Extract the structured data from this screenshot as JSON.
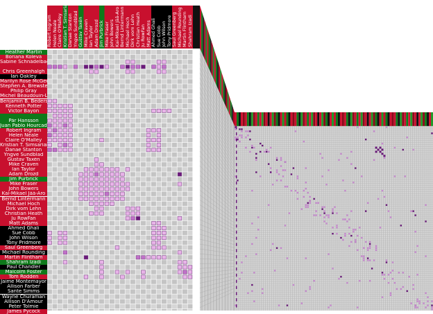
{
  "colors": {
    "red": "#c8102e",
    "green": "#0e7a1a",
    "black": "#000000",
    "cell_light": "#dcdcdc",
    "cell_dark": "#c2c2c2",
    "link_light": "#e8b3e8",
    "link_mid": "#c070c8",
    "link_dark": "#6a1a7a"
  },
  "matrix": {
    "rows": [
      {
        "name": "Heather Martin",
        "color": "green"
      },
      {
        "name": "Boriana Koleva",
        "color": "red"
      },
      {
        "name": "Sabine Schnädelbach",
        "color": "red"
      },
      {
        "name": "",
        "color": "red"
      },
      {
        "name": "Chris Greenhalgh",
        "color": "red"
      },
      {
        "name": "Ian Oakley",
        "color": "black"
      },
      {
        "name": "Marilyn Rose McGee",
        "color": "red"
      },
      {
        "name": "Stephen A. Brewster",
        "color": "red"
      },
      {
        "name": "Philip Gray",
        "color": "red"
      },
      {
        "name": "Michel Beaudouin-Lafon",
        "color": "red"
      },
      {
        "name": "Benjamin B. Bederson",
        "color": "red"
      },
      {
        "name": "Kenneth Potter",
        "color": "red"
      },
      {
        "name": "Victor Bayon",
        "color": "red"
      },
      {
        "name": "",
        "color": "green"
      },
      {
        "name": "Pär Hansson",
        "color": "green"
      },
      {
        "name": "Juan Pablo Hourcade",
        "color": "green"
      },
      {
        "name": "Robert Ingram",
        "color": "red"
      },
      {
        "name": "Helen Neale",
        "color": "red"
      },
      {
        "name": "Claire O'Malley",
        "color": "red"
      },
      {
        "name": "Kristian T. Simsarian",
        "color": "red"
      },
      {
        "name": "Danae Stanton",
        "color": "red"
      },
      {
        "name": "Yngve Sundblad",
        "color": "red"
      },
      {
        "name": "Gustav Taxén",
        "color": "red"
      },
      {
        "name": "Mike Craven",
        "color": "red"
      },
      {
        "name": "Ian Taylor",
        "color": "red"
      },
      {
        "name": "Adam Drozd",
        "color": "red"
      },
      {
        "name": "Jim Purbrick",
        "color": "green"
      },
      {
        "name": "Mike Fraser",
        "color": "red"
      },
      {
        "name": "John Bowers",
        "color": "red"
      },
      {
        "name": "Kai-Mikael Jää-Aro",
        "color": "red"
      },
      {
        "name": "Bernd Lintermann",
        "color": "red"
      },
      {
        "name": "Michael Hoch",
        "color": "red"
      },
      {
        "name": "Dirk vom Lehn",
        "color": "red"
      },
      {
        "name": "Christian Heath",
        "color": "red"
      },
      {
        "name": "Ju RowFan",
        "color": "red"
      },
      {
        "name": "Matt Adams",
        "color": "red"
      },
      {
        "name": "Ahmed Ghali",
        "color": "black"
      },
      {
        "name": "Sue Cobb",
        "color": "black"
      },
      {
        "name": "John Wilson",
        "color": "black"
      },
      {
        "name": "Tony Pridmore",
        "color": "black"
      },
      {
        "name": "Saul Greenberg",
        "color": "red"
      },
      {
        "name": "Michael Rounding",
        "color": "black"
      },
      {
        "name": "Martin Flintham",
        "color": "red"
      },
      {
        "name": "Shahram Izadi",
        "color": "green"
      },
      {
        "name": "Paul Chandler",
        "color": "black"
      },
      {
        "name": "Malcolm Foster",
        "color": "green"
      },
      {
        "name": "Tom Rodden",
        "color": "red"
      },
      {
        "name": "Jaime Montemayor",
        "color": "black"
      },
      {
        "name": "Allison Farber",
        "color": "black"
      },
      {
        "name": "Sante Simms",
        "color": "black"
      },
      {
        "name": "Wayne Churaman",
        "color": "black"
      },
      {
        "name": "Allison D'Amour",
        "color": "black"
      },
      {
        "name": "Peter Tolmie",
        "color": "black"
      },
      {
        "name": "James Pycock",
        "color": "red"
      }
    ],
    "columns": [
      {
        "name": "Robert Ingram",
        "color": "red"
      },
      {
        "name": "Helen Neale",
        "color": "red"
      },
      {
        "name": "Claire O'Malley",
        "color": "red"
      },
      {
        "name": "Kristian T. Simsarian",
        "color": "green"
      },
      {
        "name": "Danae Stanton",
        "color": "red"
      },
      {
        "name": "Yngve Sundblad",
        "color": "red"
      },
      {
        "name": "Gustav Taxén",
        "color": "green"
      },
      {
        "name": "Mike Craven",
        "color": "red"
      },
      {
        "name": "Ian Taylor",
        "color": "red"
      },
      {
        "name": "Adam Drozd",
        "color": "red"
      },
      {
        "name": "Jim Purbrick",
        "color": "green"
      },
      {
        "name": "Mike Fraser",
        "color": "red"
      },
      {
        "name": "John Bowers",
        "color": "red"
      },
      {
        "name": "Kai-Mikael Jää-Aro",
        "color": "red"
      },
      {
        "name": "Bernd Lintermann",
        "color": "red"
      },
      {
        "name": "Michael Hoch",
        "color": "red"
      },
      {
        "name": "Dirk vom Lehn",
        "color": "red"
      },
      {
        "name": "Christian Heath",
        "color": "red"
      },
      {
        "name": "Ju RowFan",
        "color": "red"
      },
      {
        "name": "Matt Adams",
        "color": "red"
      },
      {
        "name": "Ahmed Ghali",
        "color": "black"
      },
      {
        "name": "Sue Cobb",
        "color": "black"
      },
      {
        "name": "John Wilson",
        "color": "black"
      },
      {
        "name": "Tony Pridmore",
        "color": "black"
      },
      {
        "name": "Saul Greenberg",
        "color": "red"
      },
      {
        "name": "Michael Rounding",
        "color": "red"
      },
      {
        "name": "Martin Flintham",
        "color": "red"
      },
      {
        "name": "Shahram Izadi",
        "color": "red"
      }
    ]
  }
}
